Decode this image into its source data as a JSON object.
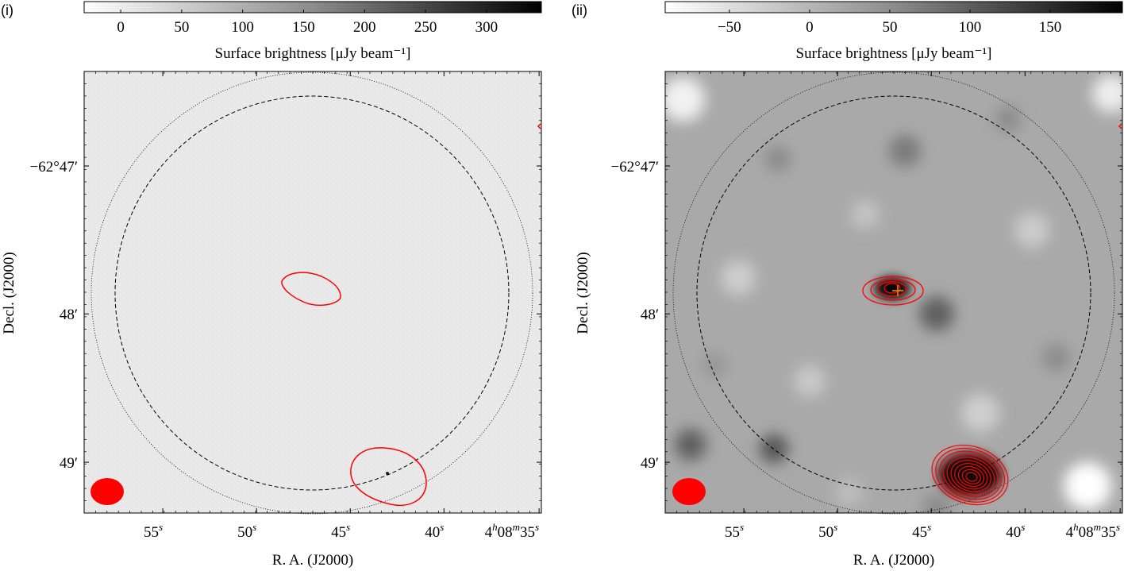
{
  "chart_data": [
    {
      "type": "heatmap",
      "panel_label": "(i)",
      "colorbar": {
        "label": "Surface brightness [μJy beam⁻¹]",
        "ticks": [
          "0",
          "50",
          "100",
          "150",
          "200",
          "250",
          "300"
        ],
        "tick_values": [
          0,
          50,
          100,
          150,
          200,
          250,
          300
        ],
        "range": [
          -30,
          345
        ],
        "colormap": "gray_r"
      },
      "xlabel": "R. A. (J2000)",
      "ylabel": "Decl. (J2000)",
      "xticks": [
        "55s",
        "50s",
        "45s",
        "40s",
        "4h08m35s"
      ],
      "yticks": [
        "−62°47′",
        "48′",
        "49′"
      ],
      "contour_color": "#ff0000",
      "features": [
        "faint contour near centre",
        "contour at lower right",
        "beam ellipse at lower left",
        "dashed and dotted circles"
      ]
    },
    {
      "type": "heatmap",
      "panel_label": "(ii)",
      "colorbar": {
        "label": "Surface brightness [μJy beam⁻¹]",
        "ticks": [
          "−50",
          "0",
          "50",
          "100",
          "150"
        ],
        "tick_values": [
          -50,
          0,
          50,
          100,
          150
        ],
        "range": [
          -90,
          195
        ],
        "colormap": "gray_r"
      },
      "xlabel": "R. A. (J2000)",
      "ylabel": "Decl. (J2000)",
      "xticks": [
        "55s",
        "50s",
        "45s",
        "40s",
        "4h08m35s"
      ],
      "yticks": [
        "−62°47′",
        "48′",
        "49′"
      ],
      "contour_color": "#ff0000",
      "marker_color": "#ff8c00",
      "features": [
        "compact source near centre with cross marker",
        "bright source at lower right with many contours",
        "beam ellipse at lower left",
        "dashed and dotted circles"
      ]
    }
  ]
}
